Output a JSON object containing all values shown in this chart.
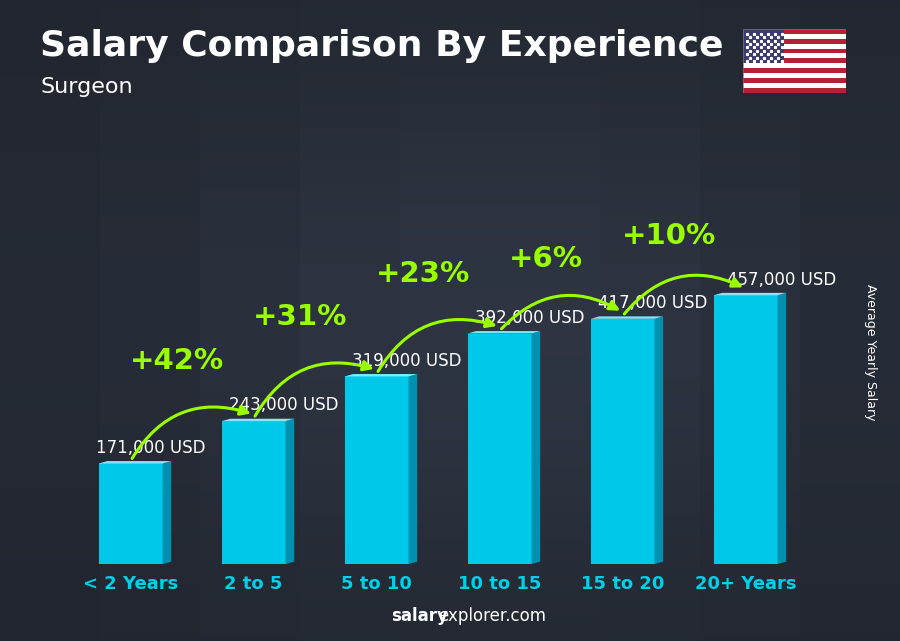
{
  "title": "Salary Comparison By Experience",
  "subtitle": "Surgeon",
  "ylabel": "Average Yearly Salary",
  "watermark_bold": "salary",
  "watermark_normal": "explorer.com",
  "categories": [
    "< 2 Years",
    "2 to 5",
    "5 to 10",
    "10 to 15",
    "15 to 20",
    "20+ Years"
  ],
  "values": [
    171000,
    243000,
    319000,
    392000,
    417000,
    457000
  ],
  "value_labels": [
    "171,000 USD",
    "243,000 USD",
    "319,000 USD",
    "392,000 USD",
    "417,000 USD",
    "457,000 USD"
  ],
  "pct_labels": [
    "+42%",
    "+31%",
    "+23%",
    "+6%",
    "+10%"
  ],
  "bar_face_color": "#00C8E8",
  "bar_right_color": "#0090B0",
  "bar_top_color": "#80E8FF",
  "title_color": "#ffffff",
  "subtitle_color": "#ffffff",
  "value_label_color": "#ffffff",
  "pct_color": "#99ff00",
  "cat_color": "#00D0E8",
  "watermark_bold_color": "#ffffff",
  "watermark_normal_color": "#ffffff",
  "ylabel_color": "#ffffff",
  "bg_color": "#2c3340",
  "title_fontsize": 26,
  "subtitle_fontsize": 16,
  "value_fontsize": 12,
  "pct_fontsize": 21,
  "cat_fontsize": 13,
  "watermark_fontsize": 12,
  "ylabel_fontsize": 9
}
